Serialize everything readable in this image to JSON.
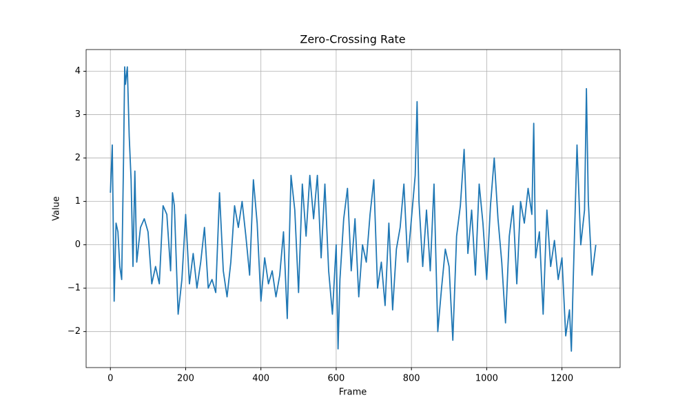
{
  "chart_data": {
    "type": "line",
    "title": "Zero-Crossing Rate",
    "xlabel": "Frame",
    "ylabel": "Value",
    "x": [
      0,
      5,
      10,
      15,
      20,
      25,
      30,
      35,
      38,
      40,
      45,
      50,
      55,
      60,
      65,
      70,
      80,
      90,
      100,
      110,
      120,
      130,
      140,
      150,
      160,
      165,
      170,
      180,
      190,
      200,
      210,
      220,
      230,
      240,
      250,
      260,
      270,
      280,
      290,
      300,
      310,
      320,
      330,
      340,
      350,
      360,
      370,
      380,
      390,
      400,
      410,
      420,
      430,
      440,
      450,
      460,
      470,
      480,
      490,
      500,
      510,
      520,
      530,
      540,
      550,
      560,
      570,
      580,
      590,
      600,
      605,
      610,
      620,
      630,
      640,
      650,
      660,
      670,
      680,
      690,
      700,
      710,
      720,
      730,
      740,
      750,
      760,
      770,
      780,
      790,
      800,
      810,
      815,
      820,
      830,
      840,
      850,
      860,
      870,
      880,
      890,
      900,
      910,
      920,
      930,
      940,
      950,
      960,
      970,
      980,
      990,
      1000,
      1010,
      1020,
      1030,
      1040,
      1050,
      1060,
      1070,
      1080,
      1090,
      1100,
      1110,
      1120,
      1125,
      1130,
      1140,
      1150,
      1160,
      1170,
      1180,
      1190,
      1200,
      1210,
      1220,
      1225,
      1230,
      1240,
      1250,
      1260,
      1265,
      1270,
      1280,
      1290
    ],
    "series": [
      {
        "name": "Zero-Crossing Rate",
        "color": "#1f77b4",
        "values": [
          1.2,
          2.3,
          -1.3,
          0.5,
          0.3,
          -0.5,
          -0.8,
          2.0,
          4.1,
          3.7,
          4.1,
          2.5,
          1.5,
          -0.5,
          1.7,
          -0.4,
          0.4,
          0.6,
          0.3,
          -0.9,
          -0.5,
          -0.9,
          0.9,
          0.7,
          -0.6,
          1.2,
          0.9,
          -1.6,
          -0.8,
          0.7,
          -0.9,
          -0.2,
          -1.0,
          -0.4,
          0.4,
          -1.0,
          -0.8,
          -1.1,
          1.2,
          -0.6,
          -1.2,
          -0.4,
          0.9,
          0.4,
          1.0,
          0.2,
          -0.7,
          1.5,
          0.5,
          -1.3,
          -0.3,
          -0.9,
          -0.6,
          -1.2,
          -0.7,
          0.3,
          -1.7,
          1.6,
          0.8,
          -1.1,
          1.4,
          0.2,
          1.6,
          0.6,
          1.6,
          -0.3,
          1.4,
          -0.6,
          -1.6,
          0.0,
          -2.4,
          -0.8,
          0.6,
          1.3,
          -0.6,
          0.6,
          -1.2,
          0.0,
          -0.4,
          0.7,
          1.5,
          -1.0,
          -0.4,
          -1.4,
          0.5,
          -1.5,
          -0.1,
          0.4,
          1.4,
          -0.4,
          0.6,
          1.6,
          3.3,
          1.0,
          -0.5,
          0.8,
          -0.6,
          1.4,
          -2.0,
          -1.0,
          -0.1,
          -0.5,
          -2.2,
          0.2,
          0.9,
          2.2,
          -0.2,
          0.8,
          -0.7,
          1.4,
          0.5,
          -0.8,
          0.9,
          2.0,
          0.6,
          -0.4,
          -1.8,
          0.2,
          0.9,
          -0.9,
          1.0,
          0.5,
          1.3,
          0.7,
          2.8,
          -0.3,
          0.3,
          -1.6,
          0.8,
          -0.5,
          0.1,
          -0.8,
          -0.3,
          -2.1,
          -1.5,
          -2.45,
          -0.8,
          2.3,
          0.0,
          0.8,
          3.6,
          1.0,
          -0.7,
          0.0
        ]
      }
    ],
    "xlim": [
      -64.5,
      1354.5
    ],
    "ylim": [
      -2.83,
      4.5
    ],
    "xticks": [
      0,
      200,
      400,
      600,
      800,
      1000,
      1200
    ],
    "yticks": [
      {
        "value": -2,
        "label": "−2"
      },
      {
        "value": -1,
        "label": "−1"
      },
      0,
      1,
      2,
      3,
      4
    ],
    "grid": true
  }
}
